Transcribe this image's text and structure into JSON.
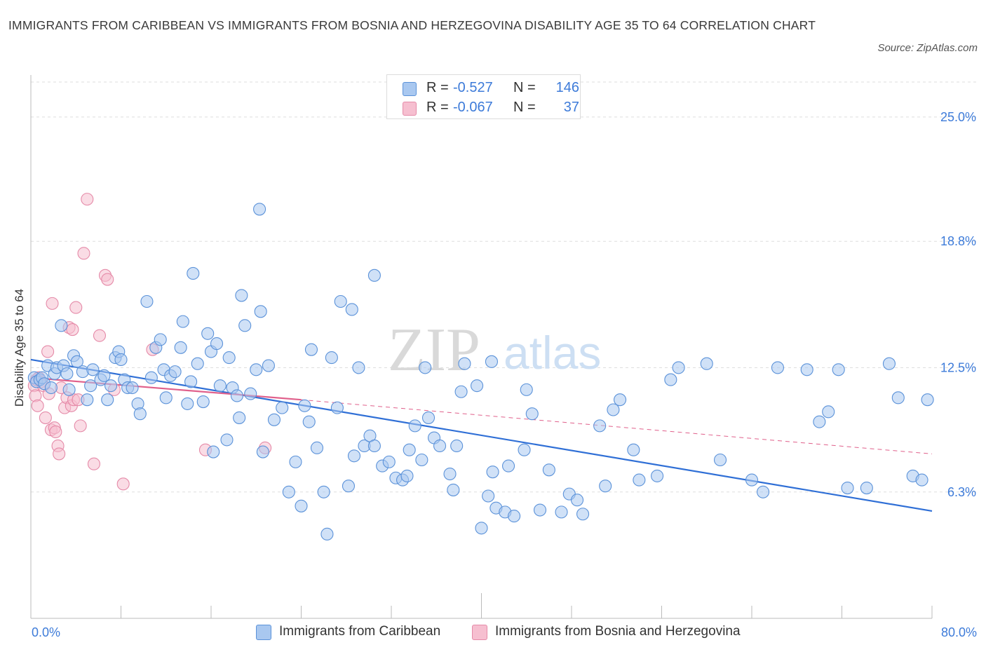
{
  "title": "IMMIGRANTS FROM CARIBBEAN VS IMMIGRANTS FROM BOSNIA AND HERZEGOVINA DISABILITY AGE 35 TO 64 CORRELATION CHART",
  "source": "Source: ZipAtlas.com",
  "watermark": {
    "zip": "ZIP",
    "atlas": "atlas"
  },
  "colors": {
    "blue_fill": "#a9c8f0",
    "blue_stroke": "#5b92d9",
    "blue_line": "#2f6fd6",
    "pink_fill": "#f6bfd0",
    "pink_stroke": "#e58aa8",
    "pink_line": "#e0608b",
    "axis_text": "#3d7bd9",
    "grid": "#dddddd"
  },
  "legend_top": {
    "rows": [
      {
        "r_label": "R =",
        "r_value": "-0.527",
        "n_label": "N =",
        "n_value": "146"
      },
      {
        "r_label": "R =",
        "r_value": "-0.067",
        "n_label": "N =",
        "n_value": "37"
      }
    ]
  },
  "chart_data": {
    "type": "scatter",
    "title": "IMMIGRANTS FROM CARIBBEAN VS IMMIGRANTS FROM BOSNIA AND HERZEGOVINA DISABILITY AGE 35 TO 64 CORRELATION CHART",
    "xlabel": "",
    "ylabel": "Disability Age 35 to 64",
    "xlim": [
      0,
      80
    ],
    "ylim": [
      0,
      27.5
    ],
    "x_tick_labels": [
      "0.0%",
      "80.0%"
    ],
    "y_ticks": [
      6.3,
      12.5,
      18.8,
      25.0
    ],
    "y_tick_labels": [
      "6.3%",
      "12.5%",
      "18.8%",
      "25.0%"
    ],
    "grid": "horizontal dashed",
    "legend_placement": "top-center and bottom",
    "series": [
      {
        "name": "Immigrants from Caribbean",
        "color": "#a9c8f0",
        "trend": {
          "x": [
            0,
            80
          ],
          "y": [
            12.9,
            5.35
          ],
          "style": "solid"
        },
        "points": [
          [
            0.3,
            12.0
          ],
          [
            0.5,
            11.8
          ],
          [
            0.8,
            11.9
          ],
          [
            1.0,
            12.0
          ],
          [
            1.2,
            11.7
          ],
          [
            1.5,
            12.6
          ],
          [
            1.8,
            11.5
          ],
          [
            2.1,
            12.2
          ],
          [
            2.3,
            12.5
          ],
          [
            2.7,
            14.6
          ],
          [
            2.9,
            12.6
          ],
          [
            3.2,
            12.2
          ],
          [
            3.4,
            11.4
          ],
          [
            3.8,
            13.1
          ],
          [
            4.1,
            12.8
          ],
          [
            4.6,
            12.3
          ],
          [
            5.0,
            10.9
          ],
          [
            5.3,
            11.6
          ],
          [
            5.5,
            12.4
          ],
          [
            6.2,
            11.9
          ],
          [
            6.5,
            12.1
          ],
          [
            6.8,
            10.9
          ],
          [
            7.1,
            11.6
          ],
          [
            7.5,
            13.0
          ],
          [
            7.8,
            13.3
          ],
          [
            8.0,
            12.9
          ],
          [
            8.3,
            11.9
          ],
          [
            8.6,
            11.5
          ],
          [
            9.0,
            11.5
          ],
          [
            9.5,
            10.7
          ],
          [
            9.7,
            10.2
          ],
          [
            10.3,
            15.8
          ],
          [
            10.7,
            12.0
          ],
          [
            11.1,
            13.5
          ],
          [
            11.5,
            13.9
          ],
          [
            11.8,
            12.4
          ],
          [
            12.0,
            11.0
          ],
          [
            12.4,
            12.1
          ],
          [
            12.8,
            12.3
          ],
          [
            13.3,
            13.5
          ],
          [
            13.5,
            14.8
          ],
          [
            13.9,
            10.7
          ],
          [
            14.2,
            11.8
          ],
          [
            14.4,
            17.2
          ],
          [
            14.8,
            12.7
          ],
          [
            15.3,
            10.8
          ],
          [
            15.7,
            14.2
          ],
          [
            16.0,
            13.3
          ],
          [
            16.2,
            8.3
          ],
          [
            16.5,
            13.7
          ],
          [
            16.8,
            11.6
          ],
          [
            17.4,
            8.9
          ],
          [
            17.6,
            13.0
          ],
          [
            17.9,
            11.5
          ],
          [
            18.3,
            11.1
          ],
          [
            18.5,
            10.0
          ],
          [
            18.7,
            16.1
          ],
          [
            19.0,
            14.6
          ],
          [
            19.5,
            11.2
          ],
          [
            20.0,
            12.4
          ],
          [
            20.4,
            15.3
          ],
          [
            20.6,
            8.3
          ],
          [
            21.1,
            12.6
          ],
          [
            21.6,
            9.9
          ],
          [
            22.3,
            10.5
          ],
          [
            22.9,
            6.3
          ],
          [
            23.5,
            7.8
          ],
          [
            24.0,
            5.6
          ],
          [
            24.3,
            10.6
          ],
          [
            24.7,
            9.8
          ],
          [
            24.9,
            13.4
          ],
          [
            25.4,
            8.5
          ],
          [
            26.0,
            6.3
          ],
          [
            26.3,
            4.2
          ],
          [
            26.7,
            13.0
          ],
          [
            27.2,
            10.5
          ],
          [
            27.5,
            15.8
          ],
          [
            28.2,
            6.6
          ],
          [
            28.5,
            15.4
          ],
          [
            28.7,
            8.1
          ],
          [
            29.1,
            12.5
          ],
          [
            29.6,
            8.6
          ],
          [
            30.1,
            9.1
          ],
          [
            30.5,
            8.6
          ],
          [
            31.2,
            7.6
          ],
          [
            31.8,
            7.8
          ],
          [
            32.4,
            7.0
          ],
          [
            33.0,
            6.9
          ],
          [
            33.4,
            7.1
          ],
          [
            33.6,
            8.4
          ],
          [
            34.1,
            9.6
          ],
          [
            34.7,
            7.9
          ],
          [
            35.0,
            12.5
          ],
          [
            35.3,
            10.0
          ],
          [
            35.8,
            9.0
          ],
          [
            36.3,
            8.6
          ],
          [
            37.2,
            7.2
          ],
          [
            37.5,
            6.4
          ],
          [
            37.8,
            8.6
          ],
          [
            38.2,
            11.3
          ],
          [
            38.5,
            12.7
          ],
          [
            39.6,
            11.6
          ],
          [
            40.0,
            4.5
          ],
          [
            40.6,
            6.1
          ],
          [
            41.0,
            7.3
          ],
          [
            41.3,
            5.5
          ],
          [
            42.1,
            5.3
          ],
          [
            42.4,
            7.6
          ],
          [
            42.9,
            5.1
          ],
          [
            43.8,
            8.4
          ],
          [
            44.0,
            11.4
          ],
          [
            44.5,
            10.2
          ],
          [
            45.2,
            5.4
          ],
          [
            46.0,
            7.4
          ],
          [
            47.1,
            5.3
          ],
          [
            47.8,
            6.2
          ],
          [
            48.5,
            5.9
          ],
          [
            49.0,
            5.2
          ],
          [
            50.5,
            9.6
          ],
          [
            51.0,
            6.6
          ],
          [
            51.7,
            10.4
          ],
          [
            52.3,
            10.9
          ],
          [
            53.5,
            8.4
          ],
          [
            54.0,
            6.9
          ],
          [
            55.6,
            7.1
          ],
          [
            56.8,
            11.9
          ],
          [
            57.5,
            12.5
          ],
          [
            60.0,
            12.7
          ],
          [
            61.2,
            7.9
          ],
          [
            64.0,
            6.9
          ],
          [
            65.0,
            6.3
          ],
          [
            66.3,
            12.5
          ],
          [
            68.9,
            12.4
          ],
          [
            70.0,
            9.8
          ],
          [
            70.8,
            10.3
          ],
          [
            71.7,
            12.4
          ],
          [
            72.5,
            6.5
          ],
          [
            74.2,
            6.5
          ],
          [
            76.2,
            12.7
          ],
          [
            77.0,
            11.0
          ],
          [
            78.3,
            7.1
          ],
          [
            79.1,
            6.9
          ],
          [
            79.6,
            10.9
          ],
          [
            20.3,
            20.4
          ],
          [
            30.5,
            17.1
          ],
          [
            40.9,
            12.8
          ]
        ]
      },
      {
        "name": "Immigrants from Bosnia and Herzegovina",
        "color": "#f6bfd0",
        "trend": {
          "x": [
            0,
            24
          ],
          "y": [
            12.0,
            10.9
          ],
          "style": "solid"
        },
        "trend_extension": {
          "x": [
            24,
            80
          ],
          "y": [
            10.9,
            8.2
          ],
          "style": "dashed"
        },
        "points": [
          [
            0.3,
            11.6
          ],
          [
            0.4,
            11.1
          ],
          [
            0.6,
            10.6
          ],
          [
            0.7,
            12.0
          ],
          [
            0.9,
            11.8
          ],
          [
            1.1,
            11.6
          ],
          [
            1.3,
            10.0
          ],
          [
            1.5,
            13.3
          ],
          [
            1.6,
            11.2
          ],
          [
            1.8,
            9.4
          ],
          [
            1.9,
            15.7
          ],
          [
            2.1,
            9.5
          ],
          [
            2.2,
            9.3
          ],
          [
            2.4,
            8.6
          ],
          [
            2.5,
            8.2
          ],
          [
            2.7,
            11.5
          ],
          [
            3.0,
            10.5
          ],
          [
            3.2,
            11.0
          ],
          [
            3.4,
            14.5
          ],
          [
            3.6,
            10.6
          ],
          [
            3.7,
            14.4
          ],
          [
            3.8,
            10.9
          ],
          [
            4.0,
            15.5
          ],
          [
            4.2,
            10.9
          ],
          [
            4.4,
            9.6
          ],
          [
            4.7,
            18.2
          ],
          [
            5.0,
            20.9
          ],
          [
            5.6,
            7.7
          ],
          [
            6.1,
            14.1
          ],
          [
            6.6,
            17.1
          ],
          [
            6.8,
            16.9
          ],
          [
            7.4,
            11.4
          ],
          [
            8.2,
            6.7
          ],
          [
            10.8,
            13.4
          ],
          [
            15.5,
            8.4
          ],
          [
            20.8,
            8.5
          ],
          [
            0.5,
            11.9
          ]
        ]
      }
    ]
  },
  "bottom_legend": [
    {
      "label": "Immigrants from Caribbean"
    },
    {
      "label": "Immigrants from Bosnia and Herzegovina"
    }
  ]
}
